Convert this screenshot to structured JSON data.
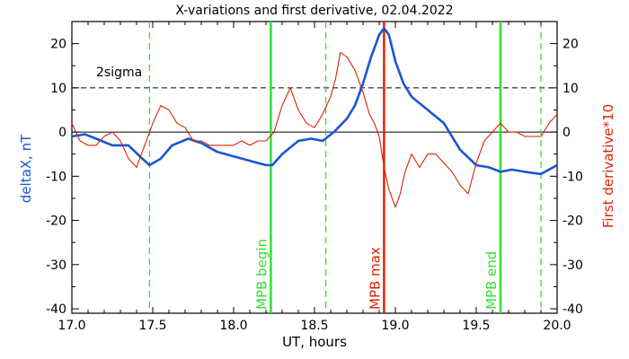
{
  "chart_data": {
    "type": "line",
    "title": "X-variations and first derivative, 02.04.2022",
    "xlabel": "UT, hours",
    "ylabel_left": "deltaX, nT",
    "ylabel_right": "First derivative*10",
    "xlim": [
      17.0,
      20.0
    ],
    "ylim": [
      -41,
      25
    ],
    "x_ticks": [
      17.0,
      17.5,
      18.0,
      18.5,
      19.0,
      19.5,
      20.0
    ],
    "y_ticks": [
      20,
      10,
      0,
      -10,
      -20,
      -30,
      -40
    ],
    "annotation_2sigma": "2sigma",
    "threshold_y": 10,
    "zero_line_y": 0,
    "vlines": [
      {
        "x": 17.48,
        "style": "dashed",
        "color": "#33dd33",
        "label": ""
      },
      {
        "x": 18.23,
        "style": "solid",
        "color": "#33dd33",
        "label": "MPB begin"
      },
      {
        "x": 18.57,
        "style": "dashed",
        "color": "#33dd33",
        "label": ""
      },
      {
        "x": 18.93,
        "style": "solid",
        "color": "#dd2200",
        "label": "MPB max"
      },
      {
        "x": 19.65,
        "style": "solid",
        "color": "#33dd33",
        "label": "MPB end"
      },
      {
        "x": 19.9,
        "style": "dashed",
        "color": "#33dd33",
        "label": ""
      }
    ],
    "series": [
      {
        "name": "deltaX, nT",
        "color": "#1a55d6",
        "x": [
          17.0,
          17.08,
          17.15,
          17.25,
          17.35,
          17.42,
          17.48,
          17.55,
          17.62,
          17.72,
          17.8,
          17.9,
          18.0,
          18.1,
          18.2,
          18.24,
          18.3,
          18.4,
          18.48,
          18.55,
          18.62,
          18.7,
          18.75,
          18.8,
          18.85,
          18.9,
          18.93,
          18.96,
          19.0,
          19.05,
          19.1,
          19.2,
          19.3,
          19.4,
          19.5,
          19.58,
          19.65,
          19.72,
          19.8,
          19.9,
          20.0
        ],
        "y": [
          -1,
          -0.5,
          -1.5,
          -3,
          -3,
          -5.5,
          -7.5,
          -6,
          -3,
          -1.5,
          -2.5,
          -4.5,
          -5.5,
          -6.5,
          -7.5,
          -7.5,
          -5,
          -2,
          -1.5,
          -2,
          0,
          3,
          6,
          11,
          17,
          22,
          23.5,
          22,
          16,
          11,
          8,
          5,
          2,
          -4,
          -7.5,
          -8,
          -9,
          -8.5,
          -9,
          -9.5,
          -7.5
        ]
      },
      {
        "name": "First derivative*10",
        "color": "#dd2200",
        "x": [
          17.0,
          17.05,
          17.1,
          17.15,
          17.2,
          17.25,
          17.3,
          17.35,
          17.4,
          17.45,
          17.5,
          17.55,
          17.6,
          17.65,
          17.7,
          17.75,
          17.8,
          17.85,
          17.9,
          17.95,
          18.0,
          18.05,
          18.1,
          18.15,
          18.2,
          18.25,
          18.3,
          18.35,
          18.4,
          18.45,
          18.5,
          18.55,
          18.6,
          18.63,
          18.66,
          18.7,
          18.75,
          18.8,
          18.84,
          18.87,
          18.9,
          18.93,
          18.96,
          19.0,
          19.03,
          19.06,
          19.1,
          19.15,
          19.2,
          19.25,
          19.3,
          19.35,
          19.4,
          19.45,
          19.5,
          19.55,
          19.6,
          19.65,
          19.7,
          19.75,
          19.8,
          19.85,
          19.9,
          19.95,
          20.0
        ],
        "y": [
          2,
          -2,
          -3,
          -3,
          -1,
          0,
          -2,
          -6,
          -8,
          -3,
          2,
          6,
          5,
          2,
          1,
          -2,
          -2,
          -3,
          -3,
          -3,
          -3,
          -2,
          -3,
          -2,
          -2,
          0,
          6,
          10,
          5,
          2,
          1,
          4,
          8,
          12,
          18,
          17,
          14,
          9,
          4,
          2,
          -1,
          -8,
          -13,
          -17,
          -14,
          -9,
          -5,
          -8,
          -5,
          -5,
          -7,
          -9,
          -12,
          -14,
          -7,
          -2,
          0,
          2,
          0,
          0,
          -1,
          -1,
          -1,
          2,
          4
        ]
      }
    ]
  }
}
